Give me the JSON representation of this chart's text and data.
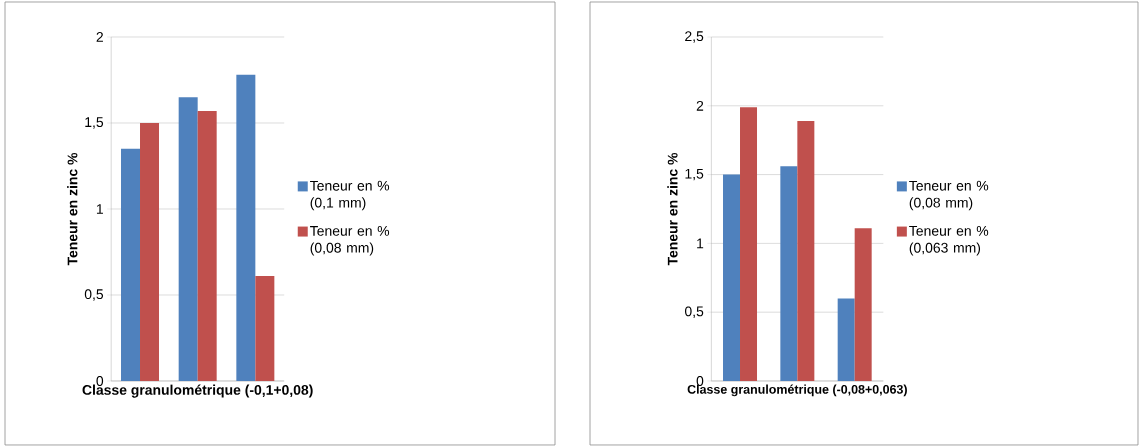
{
  "chart_data": [
    {
      "type": "bar",
      "xlabel": "Classe granulométrique (-0,1+0,08)",
      "ylabel": "Teneur en zinc %",
      "categories": [
        null,
        null,
        null
      ],
      "series": [
        {
          "name": "Teneur en % (0,1 mm)",
          "color": "#4f81bd",
          "values": [
            1.35,
            1.65,
            1.78
          ]
        },
        {
          "name": "Teneur en % (0,08 mm)",
          "color": "#c0504d",
          "values": [
            1.5,
            1.57,
            0.61
          ]
        }
      ],
      "ylim": [
        0,
        2
      ],
      "yticks": [
        {
          "value": 0,
          "label": "0"
        },
        {
          "value": 0.5,
          "label": "0,5"
        },
        {
          "value": 1,
          "label": "1"
        },
        {
          "value": 1.5,
          "label": "1,5"
        },
        {
          "value": 2,
          "label": "2"
        }
      ],
      "grid": "y",
      "legend": "right"
    },
    {
      "type": "bar",
      "xlabel": "Classe granulométrique (-0,08+0,063)",
      "ylabel": "Teneur en zinc %",
      "categories": [
        null,
        null,
        null
      ],
      "series": [
        {
          "name": "Teneur en % (0,08 mm)",
          "color": "#4f81bd",
          "values": [
            1.5,
            1.56,
            0.6
          ]
        },
        {
          "name": "Teneur en % (0,063 mm)",
          "color": "#c0504d",
          "values": [
            1.99,
            1.89,
            1.11
          ]
        }
      ],
      "ylim": [
        0,
        2.5
      ],
      "yticks": [
        {
          "value": 0,
          "label": "0"
        },
        {
          "value": 0.5,
          "label": "0,5"
        },
        {
          "value": 1,
          "label": "1"
        },
        {
          "value": 1.5,
          "label": "1,5"
        },
        {
          "value": 2,
          "label": "2"
        },
        {
          "value": 2.5,
          "label": "2,5"
        }
      ],
      "grid": "y",
      "legend": "right"
    }
  ]
}
